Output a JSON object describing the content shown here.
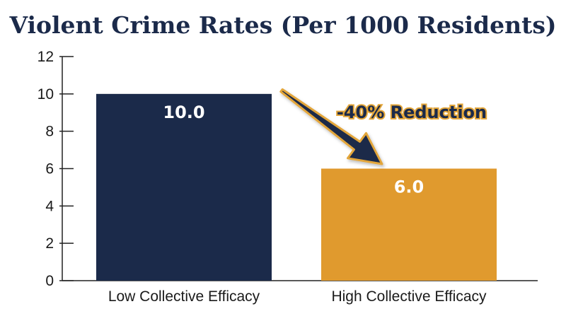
{
  "chart_data": {
    "type": "bar",
    "title": "Violent Crime Rates (Per 1000 Residents)",
    "categories": [
      "Low Collective Efficacy",
      "High Collective Efficacy"
    ],
    "values": [
      10.0,
      6.0
    ],
    "data_labels": [
      "10.0",
      "6.0"
    ],
    "colors": [
      "#1b2a4a",
      "#e09a2e"
    ],
    "ylim": [
      0,
      12
    ],
    "yticks": [
      0,
      2,
      4,
      6,
      8,
      10,
      12
    ],
    "xlabel": "",
    "ylabel": "",
    "grid": false,
    "annotation": {
      "text": "-40% Reduction",
      "arrow": "from first bar to second bar"
    }
  }
}
